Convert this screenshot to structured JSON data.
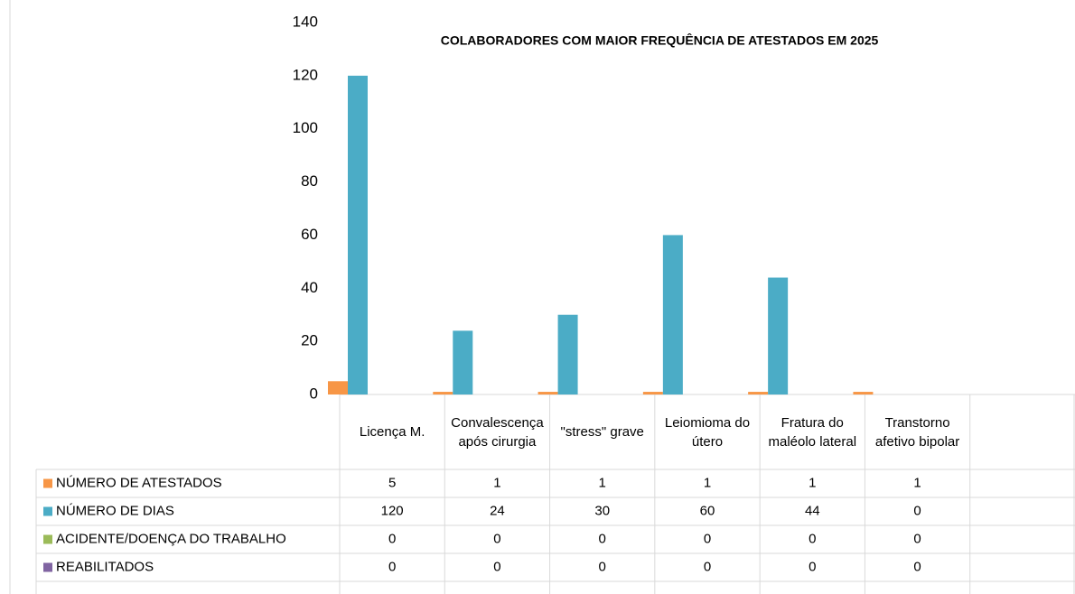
{
  "chart_data": {
    "type": "bar",
    "title": "COLABORADORES COM MAIOR FREQUÊNCIA DE ATESTADOS EM 2025",
    "categories": [
      "Licença M.",
      "Convalescença após cirurgia",
      "\"stress\" grave",
      "Leiomioma do útero",
      "Fratura do maléolo lateral",
      "Transtorno afetivo bipolar",
      null
    ],
    "series": [
      {
        "name": "NÚMERO DE ATESTADOS",
        "color": "#f79646",
        "values": [
          5,
          1,
          1,
          1,
          1,
          1,
          null
        ]
      },
      {
        "name": "NÚMERO DE DIAS",
        "color": "#4bacc6",
        "values": [
          120,
          24,
          30,
          60,
          44,
          0,
          null
        ]
      },
      {
        "name": "ACIDENTE/DOENÇA DO TRABALHO",
        "color": "#9bbb59",
        "values": [
          0,
          0,
          0,
          0,
          0,
          0,
          null
        ]
      },
      {
        "name": "REABILITADOS",
        "color": "#8064a2",
        "values": [
          0,
          0,
          0,
          0,
          0,
          0,
          null
        ]
      }
    ],
    "ylim": [
      0,
      140
    ],
    "yticks": [
      0,
      20,
      40,
      60,
      80,
      100,
      120,
      140
    ],
    "grid": false,
    "data_table": true
  }
}
